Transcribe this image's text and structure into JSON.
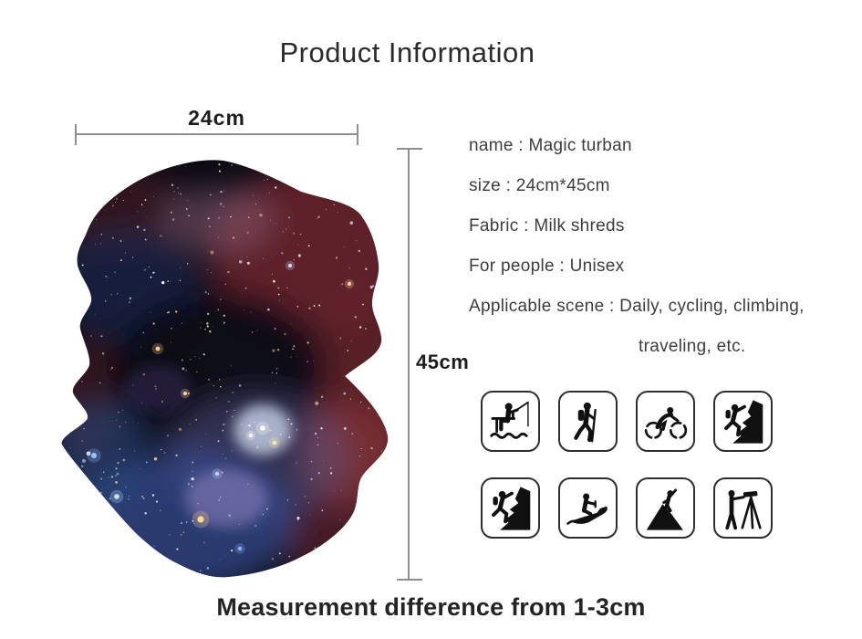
{
  "page": {
    "title": "Product Information",
    "footer_note": "Measurement difference from 1-3cm",
    "background_color": "#ffffff"
  },
  "dimensions": {
    "width_label": "24cm",
    "height_label": "45cm",
    "line_color": "#8f8f8f"
  },
  "product": {
    "image": {
      "description": "galaxy print magic turban (neck gaiter), scrunched tube shape",
      "palette": {
        "base": "#0c0a13",
        "nebula_red": "#6d2530",
        "nebula_blue": "#2c3f7a",
        "nebula_purple": "#9080bc",
        "star_cluster": "#d3dcf2"
      }
    },
    "specs": [
      "name : Magic turban",
      "size : 24cm*45cm",
      "Fabric : Milk shreds",
      "For people : Unisex",
      "Applicable scene : Daily, cycling, climbing,",
      "traveling, etc."
    ]
  },
  "scene_icons": [
    {
      "name": "fishing-icon",
      "meaning": "fishing"
    },
    {
      "name": "hiking-icon",
      "meaning": "hiking / trekking"
    },
    {
      "name": "cycling-icon",
      "meaning": "cycling"
    },
    {
      "name": "rock-climbing-icon",
      "meaning": "rock climbing"
    },
    {
      "name": "climbing-icon",
      "meaning": "climbing"
    },
    {
      "name": "jet-ski-icon",
      "meaning": "jet ski / water sports"
    },
    {
      "name": "mountain-summit-icon",
      "meaning": "mountaineering / summit"
    },
    {
      "name": "surveying-tripod-icon",
      "meaning": "surveying / outdoor work"
    }
  ]
}
